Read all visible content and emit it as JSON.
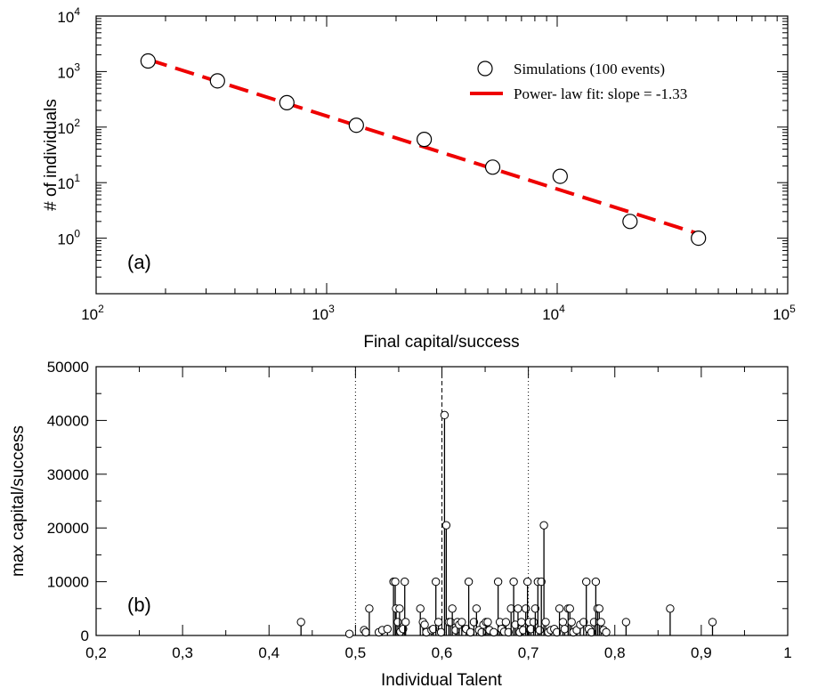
{
  "chart_data": [
    {
      "type": "scatter",
      "panel_label": "(a)",
      "xlabel": "Final capital/success",
      "ylabel": "# of individuals",
      "xscale": "log",
      "yscale": "log",
      "xlim": [
        100,
        100000
      ],
      "ylim": [
        0.1,
        10000
      ],
      "x_ticks": [
        {
          "base": "10",
          "exp": "2"
        },
        {
          "base": "10",
          "exp": "3"
        },
        {
          "base": "10",
          "exp": "4"
        },
        {
          "base": "10",
          "exp": "5"
        }
      ],
      "y_ticks": [
        {
          "base": "10",
          "exp": "0"
        },
        {
          "base": "10",
          "exp": "1"
        },
        {
          "base": "10",
          "exp": "2"
        },
        {
          "base": "10",
          "exp": "3"
        },
        {
          "base": "10",
          "exp": "4"
        }
      ],
      "series": [
        {
          "name": "Simulations (100 events)",
          "style": "open-circle",
          "x": [
            168,
            336,
            672,
            1345,
            2650,
            5250,
            10300,
            20700,
            41000
          ],
          "y": [
            1550,
            680,
            275,
            108,
            60,
            19,
            13,
            2,
            1
          ]
        },
        {
          "name": "Power- law fit: slope = -1.33",
          "style": "dashed-line",
          "color": "#ee0000",
          "x": [
            168,
            41000
          ],
          "y": [
            1650,
            1.2
          ]
        }
      ],
      "legend_position": "top-right"
    },
    {
      "type": "scatter",
      "subtype": "stem",
      "panel_label": "(b)",
      "xlabel": "Individual  Talent",
      "ylabel": "max capital/success",
      "xlim": [
        0.2,
        1.0
      ],
      "ylim": [
        0,
        50000
      ],
      "x_tick_labels": [
        "0,2",
        "0,3",
        "0,4",
        "0,5",
        "0,6",
        "0,7",
        "0,8",
        "0,9",
        "1"
      ],
      "y_tick_labels": [
        "0",
        "10000",
        "20000",
        "30000",
        "40000",
        "50000"
      ],
      "reference_lines": [
        {
          "x": 0.5,
          "style": "dotted"
        },
        {
          "x": 0.6,
          "style": "dashed"
        },
        {
          "x": 0.7,
          "style": "dotted"
        }
      ],
      "points": [
        {
          "x": 0.437,
          "y": 2500
        },
        {
          "x": 0.493,
          "y": 300
        },
        {
          "x": 0.51,
          "y": 1000
        },
        {
          "x": 0.512,
          "y": 600
        },
        {
          "x": 0.516,
          "y": 5000
        },
        {
          "x": 0.527,
          "y": 600
        },
        {
          "x": 0.531,
          "y": 1000
        },
        {
          "x": 0.537,
          "y": 1200
        },
        {
          "x": 0.544,
          "y": 10000
        },
        {
          "x": 0.546,
          "y": 10000
        },
        {
          "x": 0.547,
          "y": 5000
        },
        {
          "x": 0.549,
          "y": 2500
        },
        {
          "x": 0.551,
          "y": 5000
        },
        {
          "x": 0.552,
          "y": 700
        },
        {
          "x": 0.555,
          "y": 1200
        },
        {
          "x": 0.557,
          "y": 10000
        },
        {
          "x": 0.558,
          "y": 2500
        },
        {
          "x": 0.575,
          "y": 5000
        },
        {
          "x": 0.578,
          "y": 2500
        },
        {
          "x": 0.58,
          "y": 2000
        },
        {
          "x": 0.582,
          "y": 600
        },
        {
          "x": 0.588,
          "y": 1000
        },
        {
          "x": 0.59,
          "y": 1200
        },
        {
          "x": 0.593,
          "y": 10000
        },
        {
          "x": 0.596,
          "y": 2500
        },
        {
          "x": 0.599,
          "y": 600
        },
        {
          "x": 0.603,
          "y": 41000
        },
        {
          "x": 0.605,
          "y": 20500
        },
        {
          "x": 0.608,
          "y": 2500
        },
        {
          "x": 0.61,
          "y": 2500
        },
        {
          "x": 0.612,
          "y": 5000
        },
        {
          "x": 0.616,
          "y": 1000
        },
        {
          "x": 0.618,
          "y": 2500
        },
        {
          "x": 0.62,
          "y": 2000
        },
        {
          "x": 0.623,
          "y": 2500
        },
        {
          "x": 0.628,
          "y": 1200
        },
        {
          "x": 0.631,
          "y": 10000
        },
        {
          "x": 0.633,
          "y": 600
        },
        {
          "x": 0.637,
          "y": 2500
        },
        {
          "x": 0.64,
          "y": 5000
        },
        {
          "x": 0.643,
          "y": 1000
        },
        {
          "x": 0.646,
          "y": 600
        },
        {
          "x": 0.648,
          "y": 2000
        },
        {
          "x": 0.651,
          "y": 2500
        },
        {
          "x": 0.653,
          "y": 2500
        },
        {
          "x": 0.655,
          "y": 1000
        },
        {
          "x": 0.66,
          "y": 600
        },
        {
          "x": 0.665,
          "y": 10000
        },
        {
          "x": 0.667,
          "y": 2500
        },
        {
          "x": 0.669,
          "y": 1200
        },
        {
          "x": 0.672,
          "y": 700
        },
        {
          "x": 0.674,
          "y": 2500
        },
        {
          "x": 0.677,
          "y": 600
        },
        {
          "x": 0.68,
          "y": 5000
        },
        {
          "x": 0.683,
          "y": 10000
        },
        {
          "x": 0.685,
          "y": 2000
        },
        {
          "x": 0.688,
          "y": 5000
        },
        {
          "x": 0.69,
          "y": 600
        },
        {
          "x": 0.692,
          "y": 2500
        },
        {
          "x": 0.694,
          "y": 1000
        },
        {
          "x": 0.697,
          "y": 5000
        },
        {
          "x": 0.699,
          "y": 10000
        },
        {
          "x": 0.701,
          "y": 2500
        },
        {
          "x": 0.703,
          "y": 1200
        },
        {
          "x": 0.706,
          "y": 2500
        },
        {
          "x": 0.708,
          "y": 5000
        },
        {
          "x": 0.711,
          "y": 10000
        },
        {
          "x": 0.713,
          "y": 1000
        },
        {
          "x": 0.715,
          "y": 10000
        },
        {
          "x": 0.718,
          "y": 20500
        },
        {
          "x": 0.72,
          "y": 2500
        },
        {
          "x": 0.723,
          "y": 600
        },
        {
          "x": 0.726,
          "y": 1000
        },
        {
          "x": 0.73,
          "y": 1200
        },
        {
          "x": 0.733,
          "y": 600
        },
        {
          "x": 0.736,
          "y": 5000
        },
        {
          "x": 0.74,
          "y": 2500
        },
        {
          "x": 0.742,
          "y": 1200
        },
        {
          "x": 0.746,
          "y": 5000
        },
        {
          "x": 0.748,
          "y": 5000
        },
        {
          "x": 0.75,
          "y": 2500
        },
        {
          "x": 0.752,
          "y": 600
        },
        {
          "x": 0.756,
          "y": 1000
        },
        {
          "x": 0.76,
          "y": 2000
        },
        {
          "x": 0.764,
          "y": 2500
        },
        {
          "x": 0.767,
          "y": 10000
        },
        {
          "x": 0.77,
          "y": 1200
        },
        {
          "x": 0.773,
          "y": 600
        },
        {
          "x": 0.776,
          "y": 2500
        },
        {
          "x": 0.778,
          "y": 10000
        },
        {
          "x": 0.78,
          "y": 5000
        },
        {
          "x": 0.782,
          "y": 5000
        },
        {
          "x": 0.784,
          "y": 2500
        },
        {
          "x": 0.787,
          "y": 1000
        },
        {
          "x": 0.79,
          "y": 600
        },
        {
          "x": 0.813,
          "y": 2500
        },
        {
          "x": 0.864,
          "y": 5000
        },
        {
          "x": 0.913,
          "y": 2500
        }
      ]
    }
  ]
}
